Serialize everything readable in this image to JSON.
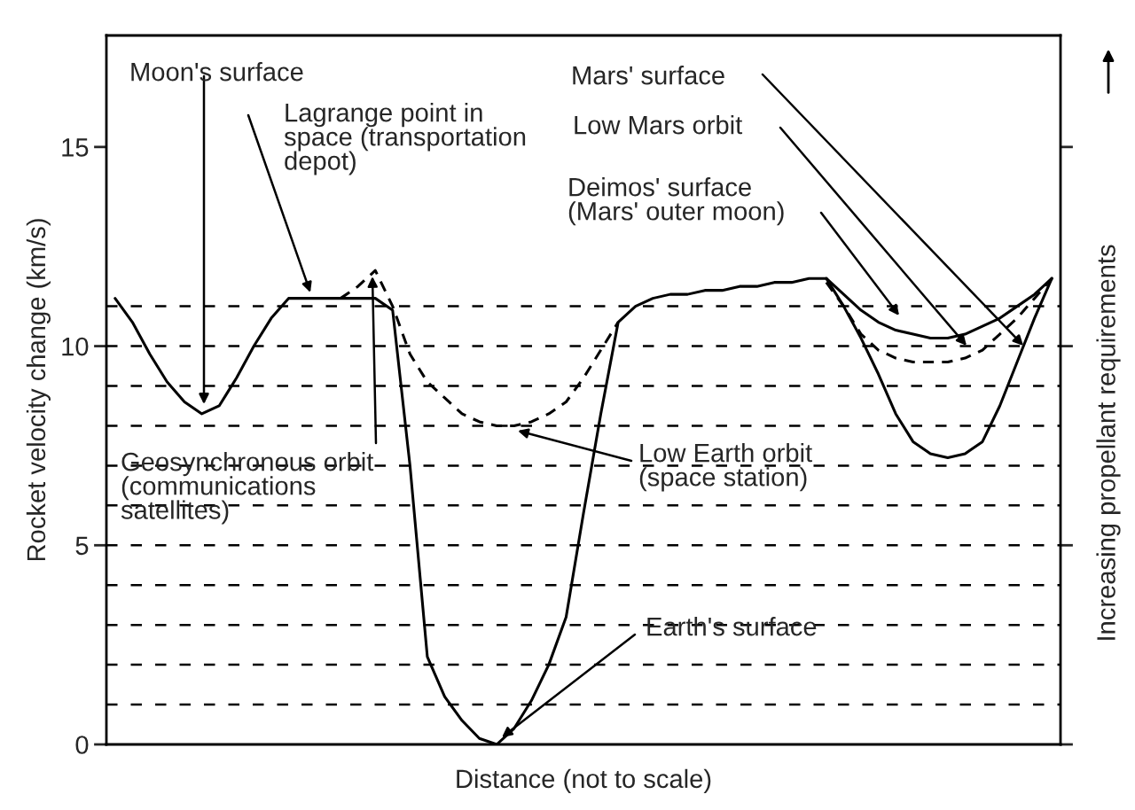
{
  "chart_data": {
    "type": "line",
    "xlabel": "Distance (not to scale)",
    "ylabel": "Rocket velocity change (km/s)",
    "y2label": "Increasing propellant requirements",
    "categories": [
      null,
      null,
      null,
      null,
      null,
      null,
      null,
      null,
      null,
      null,
      null,
      null,
      null,
      null,
      null,
      null,
      null,
      null,
      null,
      null,
      null,
      null,
      null,
      null,
      null,
      null,
      null,
      null,
      null,
      null,
      null,
      null,
      null,
      null,
      null,
      null,
      null,
      null,
      null,
      null,
      null,
      null,
      null,
      null,
      null,
      null,
      null,
      null,
      null,
      null,
      null,
      null,
      null,
      null,
      null
    ],
    "series": [
      {
        "color": "#000000",
        "line_style": "solid",
        "values": [
          11.2,
          10.6,
          9.8,
          9.1,
          8.6,
          8.3,
          8.5,
          9.2,
          10.0,
          10.7,
          11.2,
          11.2,
          11.2,
          11.2,
          11.2,
          11.2,
          10.9,
          7.0,
          2.2,
          1.2,
          0.6,
          0.15,
          0,
          0.4,
          1.1,
          2.0,
          3.2,
          5.8,
          8.3,
          10.6,
          11.0,
          11.2,
          11.3,
          11.3,
          11.4,
          11.4,
          11.5,
          11.5,
          11.6,
          11.6,
          11.7,
          11.7,
          11.3,
          10.9,
          10.6,
          10.4,
          10.3,
          10.2,
          10.2,
          10.3,
          10.5,
          10.7,
          11.0,
          11.3,
          11.7
        ]
      },
      {
        "color": "#000000",
        "line_style": "solid",
        "values": [
          null,
          null,
          null,
          null,
          null,
          null,
          null,
          null,
          null,
          null,
          null,
          null,
          null,
          null,
          null,
          null,
          null,
          null,
          null,
          null,
          null,
          null,
          null,
          null,
          null,
          null,
          null,
          null,
          null,
          null,
          null,
          null,
          null,
          null,
          null,
          null,
          null,
          null,
          null,
          null,
          null,
          11.7,
          11.0,
          10.2,
          9.3,
          8.3,
          7.6,
          7.3,
          7.2,
          7.3,
          7.6,
          8.5,
          9.6,
          10.7,
          11.7
        ]
      },
      {
        "color": "#000000",
        "line_style": "dashed",
        "values": [
          null,
          null,
          null,
          null,
          null,
          null,
          null,
          null,
          null,
          null,
          null,
          null,
          null,
          11.2,
          11.5,
          11.9,
          11.0,
          9.8,
          9.1,
          8.7,
          8.3,
          8.1,
          8.0,
          8.0,
          8.1,
          8.3,
          8.6,
          9.2,
          9.9,
          10.6,
          null,
          null,
          null,
          null,
          null,
          null,
          null,
          null,
          null,
          null,
          null,
          11.6,
          11.0,
          10.3,
          9.9,
          9.7,
          9.6,
          9.6,
          9.6,
          9.7,
          9.9,
          10.3,
          10.7,
          11.2,
          11.7
        ]
      }
    ],
    "ylim": [
      0,
      17.8
    ],
    "yticks": [
      0,
      5,
      10,
      15
    ],
    "tick_labels": "y",
    "grid": false,
    "legend": false,
    "marker": "none",
    "ref_lines": [
      {
        "axis": "y",
        "value": 1,
        "line_style": "dashed"
      },
      {
        "axis": "y",
        "value": 2,
        "line_style": "dashed"
      },
      {
        "axis": "y",
        "value": 3,
        "line_style": "dashed"
      },
      {
        "axis": "y",
        "value": 4,
        "line_style": "dashed"
      },
      {
        "axis": "y",
        "value": 5,
        "line_style": "dashed"
      },
      {
        "axis": "y",
        "value": 6,
        "line_style": "dashed"
      },
      {
        "axis": "y",
        "value": 7,
        "line_style": "dashed"
      },
      {
        "axis": "y",
        "value": 8,
        "line_style": "dashed"
      },
      {
        "axis": "y",
        "value": 9,
        "line_style": "dashed"
      },
      {
        "axis": "y",
        "value": 10,
        "line_style": "dashed"
      },
      {
        "axis": "y",
        "value": 11,
        "line_style": "dashed"
      }
    ],
    "annotations": [
      "Moon's surface",
      "Lagrange point in\nspace (transportation\ndepot)",
      "Geosynchronous orbit\n(communications\nsatellites)",
      "Low Earth orbit\n(space station)",
      "Earth's surface",
      "Deimos' surface\n(Mars' outer moon)",
      "Low Mars orbit",
      "Mars' surface"
    ]
  }
}
